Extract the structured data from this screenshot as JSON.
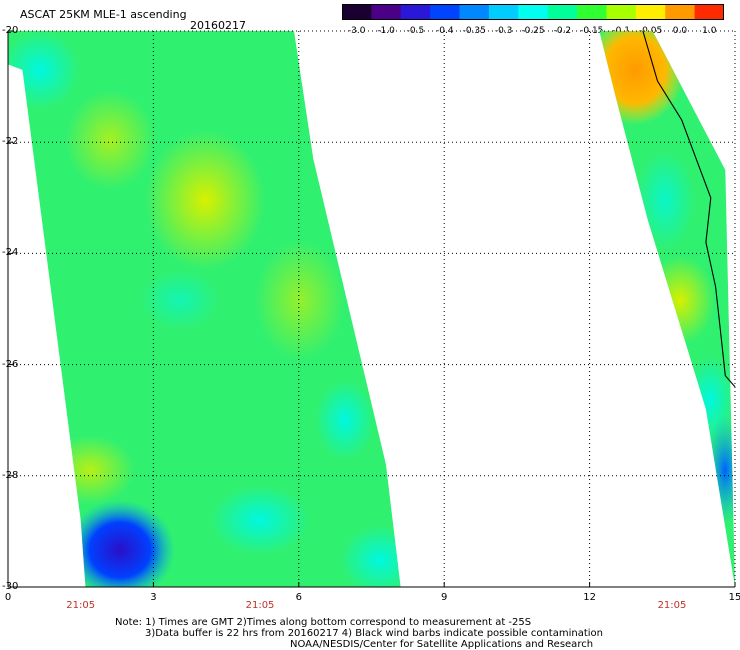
{
  "header": {
    "title": "ASCAT 25KM MLE-1 ascending",
    "date": "20160217"
  },
  "colorbar": {
    "labels": [
      "-3.0",
      "-1.0",
      "-0.5",
      "-0.4",
      "-0.35",
      "-0.3",
      "-0.25",
      "-0.2",
      "-0.15",
      "-0.1",
      "-0.05",
      "0.0",
      "1.0"
    ],
    "colors": [
      "#1a0030",
      "#4b0088",
      "#2a18d8",
      "#0044ff",
      "#0088ff",
      "#00ccff",
      "#00ffee",
      "#00ff9a",
      "#30ff30",
      "#a8ff00",
      "#ffee00",
      "#ff9a00",
      "#ff2a00"
    ]
  },
  "chart_data": {
    "type": "map",
    "xlim": [
      0,
      15
    ],
    "ylim": [
      -30,
      -20
    ],
    "x_ticks": [
      "0",
      "3",
      "6",
      "9",
      "12",
      "15"
    ],
    "y_ticks": [
      "-20",
      "-22",
      "-24",
      "-26",
      "-28",
      "-30"
    ],
    "time_labels": [
      {
        "x": 1.5,
        "label": "21:05"
      },
      {
        "x": 5.2,
        "label": "21:05"
      },
      {
        "x": 13.7,
        "label": "21:05"
      }
    ],
    "grid": true,
    "swaths": [
      {
        "name": "west",
        "polygon": [
          [
            0,
            -20
          ],
          [
            5.9,
            -20
          ],
          [
            6.3,
            -22.3
          ],
          [
            7.8,
            -27.8
          ],
          [
            8.1,
            -30
          ],
          [
            1.6,
            -30
          ],
          [
            1.5,
            -28.8
          ],
          [
            0.3,
            -20.7
          ],
          [
            0,
            -20.6
          ]
        ]
      },
      {
        "name": "east",
        "polygon": [
          [
            12.2,
            -20
          ],
          [
            13.3,
            -20
          ],
          [
            14.8,
            -22.5
          ],
          [
            15,
            -30
          ],
          [
            14.4,
            -26.8
          ],
          [
            13.2,
            -23.4
          ],
          [
            12.6,
            -21.4
          ]
        ]
      }
    ],
    "coastline": [
      [
        13.1,
        -20
      ],
      [
        13.4,
        -20.9
      ],
      [
        13.9,
        -21.6
      ],
      [
        14.2,
        -22.3
      ],
      [
        14.5,
        -23
      ],
      [
        14.4,
        -23.8
      ],
      [
        14.6,
        -24.6
      ],
      [
        14.7,
        -25.4
      ],
      [
        14.8,
        -26.2
      ],
      [
        15,
        -26.4
      ]
    ]
  },
  "notes": {
    "line1": "Note: 1) Times are GMT 2)Times along bottom correspond to measurement at -25S",
    "line2": "3)Data buffer is 22 hrs from 20160217 4) Black wind barbs indicate possible contamination",
    "line3": "NOAA/NESDIS/Center for Satellite Applications and Research"
  }
}
